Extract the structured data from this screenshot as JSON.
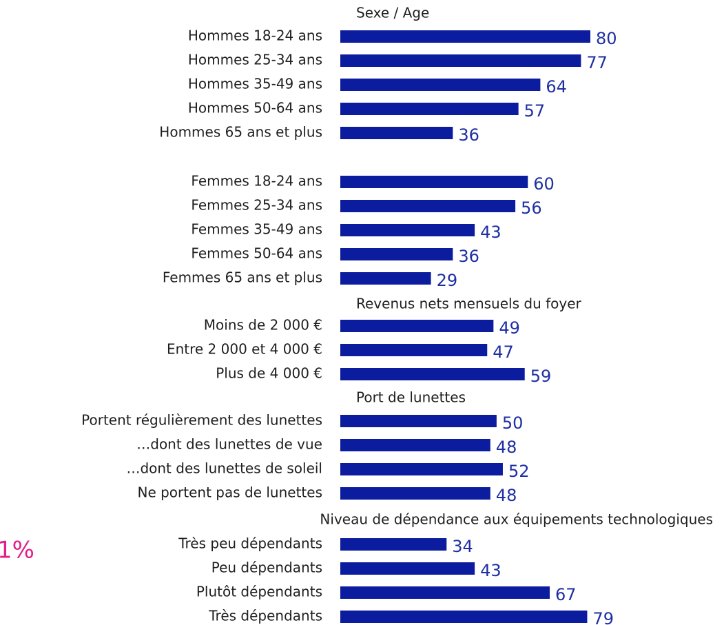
{
  "chart_data": {
    "type": "hbar",
    "color": "#0c1c9e",
    "xlim": [
      0,
      80
    ],
    "annotation": "1%",
    "groups": [
      {
        "title": "Sexe / Age",
        "categories": [
          "Hommes 18-24 ans",
          "Hommes 25-34 ans",
          "Hommes 35-49 ans",
          "Hommes 50-64 ans",
          "Hommes 65 ans et plus"
        ],
        "values": [
          80,
          77,
          64,
          57,
          36
        ]
      },
      {
        "categories": [
          "Femmes 18-24 ans",
          "Femmes 25-34 ans",
          "Femmes 35-49 ans",
          "Femmes 50-64 ans",
          "Femmes 65 ans et plus"
        ],
        "values": [
          60,
          56,
          43,
          36,
          29
        ]
      },
      {
        "title": "Revenus nets mensuels du foyer",
        "categories": [
          "Moins de 2 000 €",
          "Entre 2 000 et 4 000 €",
          "Plus de 4 000 €"
        ],
        "values": [
          49,
          47,
          59
        ]
      },
      {
        "title": "Port de lunettes",
        "categories": [
          "Portent régulièrement des lunettes",
          "…dont des lunettes de vue",
          "…dont des lunettes de soleil",
          "Ne portent pas de lunettes"
        ],
        "values": [
          50,
          48,
          52,
          48
        ]
      },
      {
        "title": "Niveau de dépendance aux équipements technologiques",
        "categories": [
          "Très peu dépendants",
          "Peu dépendants",
          "Plutôt dépendants",
          "Très dépendants"
        ],
        "values": [
          34,
          43,
          67,
          79
        ]
      }
    ]
  }
}
